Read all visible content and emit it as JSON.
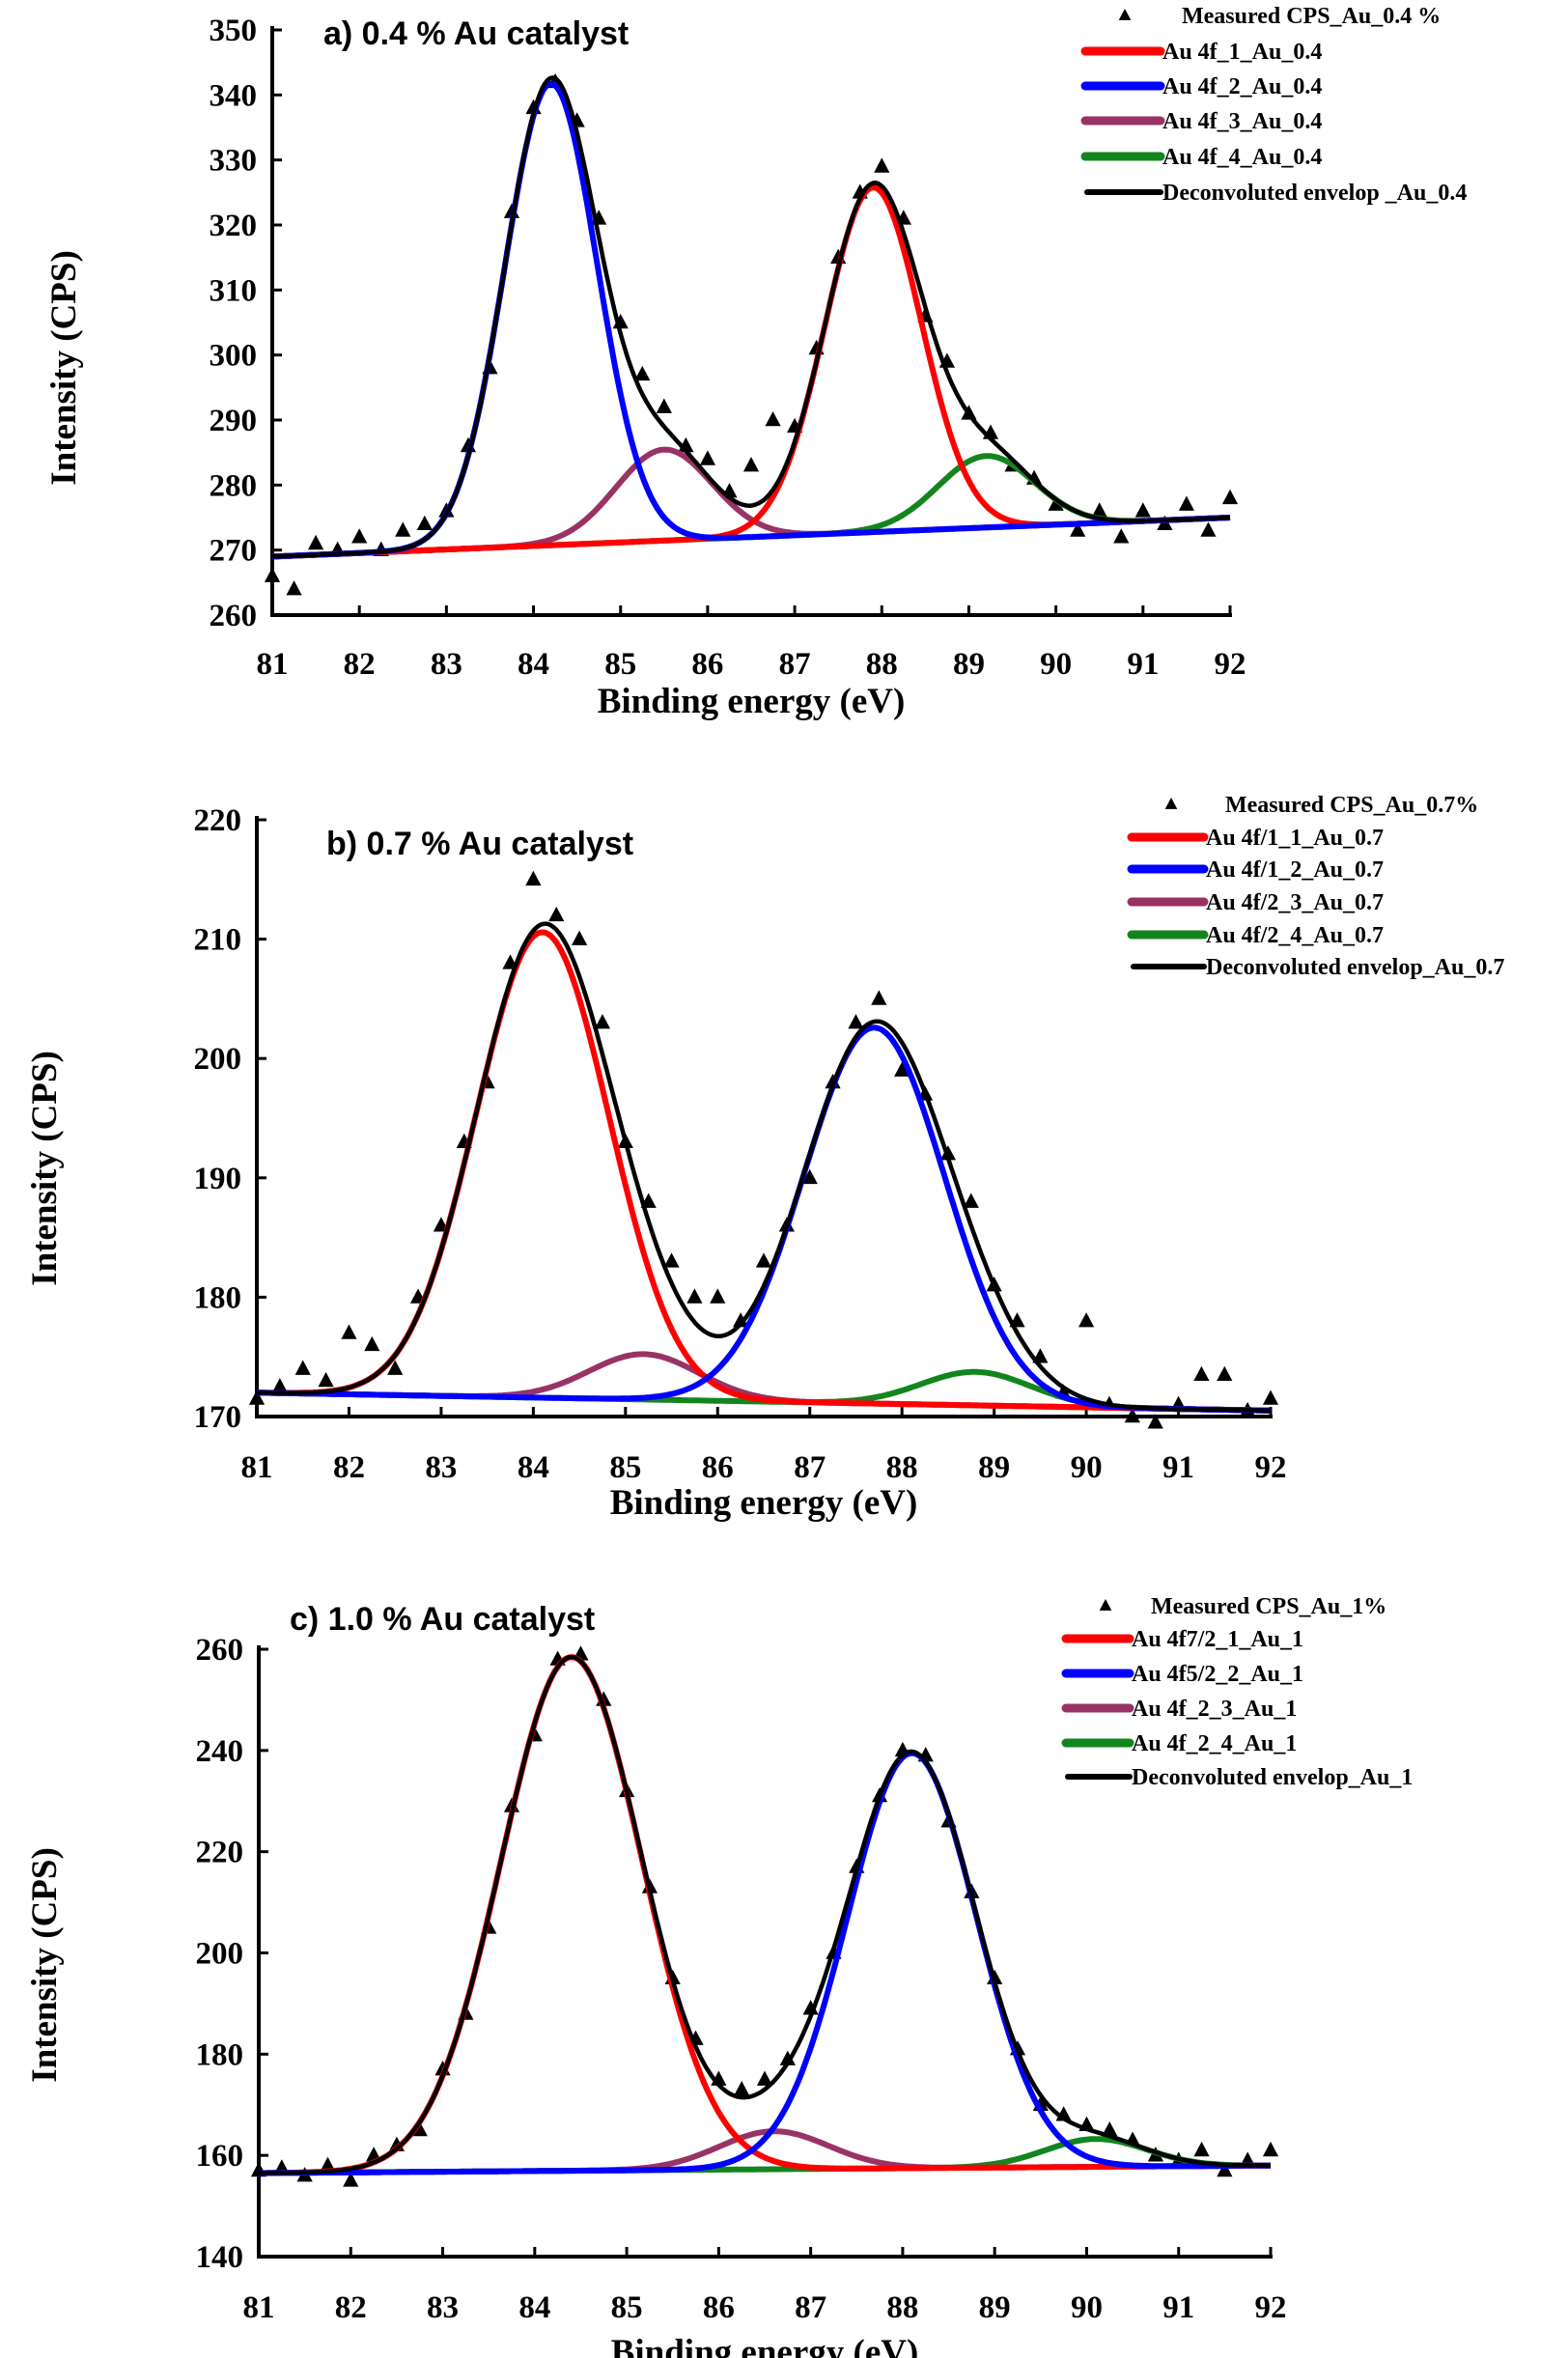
{
  "chart_data": [
    {
      "type": "scatter+line",
      "title": "a) 0.4 %  Au catalyst",
      "xlabel": "Binding energy (eV)",
      "ylabel": "Intensity (CPS)",
      "xlim": [
        81,
        92
      ],
      "ylim": [
        260,
        350
      ],
      "xticks": [
        81,
        82,
        83,
        84,
        85,
        86,
        87,
        88,
        89,
        90,
        91,
        92
      ],
      "yticks": [
        260,
        270,
        280,
        290,
        300,
        310,
        320,
        330,
        340,
        350
      ],
      "grid": false,
      "legend_position": "top-right",
      "measured": {
        "name": "Measured CPS_Au_0.4 %",
        "marker": "triangle",
        "x_start": 81,
        "x_step": 0.25,
        "y": [
          266,
          264,
          271,
          270,
          272,
          270,
          273,
          274,
          276,
          286,
          298,
          322,
          338,
          342,
          336,
          321,
          305,
          297,
          292,
          286,
          284,
          279,
          283,
          290,
          289,
          301,
          315,
          325,
          329,
          321,
          306,
          299,
          291,
          288,
          283,
          281,
          277,
          273,
          276,
          272,
          276,
          274,
          277,
          273,
          278
        ]
      },
      "baseline": {
        "x": [
          81,
          92
        ],
        "y": [
          269,
          275
        ]
      },
      "components": [
        {
          "name": "Au 4f_1_Au_0.4",
          "color": "#ff0000",
          "center": 87.9,
          "height": 53,
          "fwhm": 1.3
        },
        {
          "name": "Au 4f_2_Au_0.4",
          "color": "#0000ff",
          "center": 84.2,
          "height": 71,
          "fwhm": 1.25
        },
        {
          "name": "Au 4f_3_Au_0.4",
          "color": "#993366",
          "center": 85.5,
          "height": 14,
          "fwhm": 1.3
        },
        {
          "name": "Au 4f_4_Au_0.4",
          "color": "#13851d",
          "center": 89.2,
          "height": 11,
          "fwhm": 1.3
        }
      ],
      "envelope": {
        "name": "Deconvoluted envelop _Au_0.4",
        "color": "#000000"
      }
    },
    {
      "type": "scatter+line",
      "title": "b) 0.7 %  Au catalyst",
      "xlabel": "Binding energy (eV)",
      "ylabel": "Intensity (CPS)",
      "xlim": [
        81,
        92
      ],
      "ylim": [
        170,
        220
      ],
      "xticks": [
        81,
        82,
        83,
        84,
        85,
        86,
        87,
        88,
        89,
        90,
        91,
        92
      ],
      "yticks": [
        170,
        180,
        190,
        200,
        210,
        220
      ],
      "grid": false,
      "legend_position": "top-right",
      "measured": {
        "name": "Measured CPS_Au_0.7%",
        "marker": "triangle",
        "x_start": 81,
        "x_step": 0.25,
        "y": [
          171.5,
          172.5,
          174,
          173,
          177,
          176,
          174,
          180,
          186,
          193,
          198,
          208,
          215,
          212,
          210,
          203,
          193,
          188,
          183,
          180,
          180,
          178,
          183,
          186,
          190,
          198,
          203,
          205,
          199,
          197,
          192,
          188,
          181,
          178,
          175,
          172,
          178,
          171,
          170,
          169.5,
          171,
          173.5,
          173.5,
          170.5,
          171.5
        ]
      },
      "baseline": {
        "x": [
          81,
          92
        ],
        "y": [
          172,
          170.5
        ]
      },
      "components": [
        {
          "name": "Au 4f/1_1_Au_0.7",
          "color": "#ff0000",
          "center": 84.1,
          "height": 39,
          "fwhm": 1.7
        },
        {
          "name": "Au 4f/1_2_Au_0.7",
          "color": "#0000ff",
          "center": 87.7,
          "height": 31.5,
          "fwhm": 1.8
        },
        {
          "name": "Au 4f/2_3_Au_0.7",
          "color": "#993366",
          "center": 85.2,
          "height": 3.8,
          "fwhm": 1.4
        },
        {
          "name": "Au 4f/2_4_Au_0.7",
          "color": "#13851d",
          "center": 88.8,
          "height": 2.8,
          "fwhm": 1.4
        }
      ],
      "envelope": {
        "name": "Deconvoluted envelop_Au_0.7",
        "color": "#000000"
      }
    },
    {
      "type": "scatter+line",
      "title": "c) 1.0 %  Au catalyst",
      "xlabel": "Binding energy (eV)",
      "ylabel": "Intensity (CPS)",
      "xlim": [
        81,
        92
      ],
      "ylim": [
        140,
        260
      ],
      "xticks": [
        81,
        82,
        83,
        84,
        85,
        86,
        87,
        88,
        89,
        90,
        91,
        92
      ],
      "yticks": [
        140,
        160,
        180,
        200,
        220,
        240,
        260
      ],
      "grid": false,
      "legend_position": "top-right",
      "measured": {
        "name": "Measured CPS_Au_1%",
        "marker": "triangle",
        "x_start": 81,
        "x_step": 0.25,
        "y": [
          157,
          157.5,
          156,
          158,
          155,
          160,
          162,
          165,
          177,
          188,
          205,
          229,
          243,
          258,
          259,
          250,
          232,
          213,
          195,
          183,
          175,
          173,
          175,
          179,
          189,
          200,
          217,
          231,
          240,
          239,
          226,
          212,
          195,
          181,
          170,
          168,
          166,
          165,
          163,
          160,
          159,
          161,
          157,
          159,
          161
        ]
      },
      "baseline": {
        "x": [
          81,
          92
        ],
        "y": [
          156.5,
          158
        ]
      },
      "components": [
        {
          "name": "Au 4f7/2_1_Au_1",
          "color": "#ff0000",
          "center": 84.4,
          "height": 101.5,
          "fwhm": 1.8
        },
        {
          "name": "Au 4f5/2_2_Au_1",
          "color": "#0000ff",
          "center": 88.1,
          "height": 82,
          "fwhm": 1.65
        },
        {
          "name": "Au 4f_2_3_Au_1",
          "color": "#993366",
          "center": 86.6,
          "height": 7.5,
          "fwhm": 1.4
        },
        {
          "name": "Au 4f_2_4_Au_1",
          "color": "#13851d",
          "center": 90.1,
          "height": 5.5,
          "fwhm": 1.3
        }
      ],
      "envelope": {
        "name": "Deconvoluted envelop_Au_1",
        "color": "#000000"
      }
    }
  ]
}
